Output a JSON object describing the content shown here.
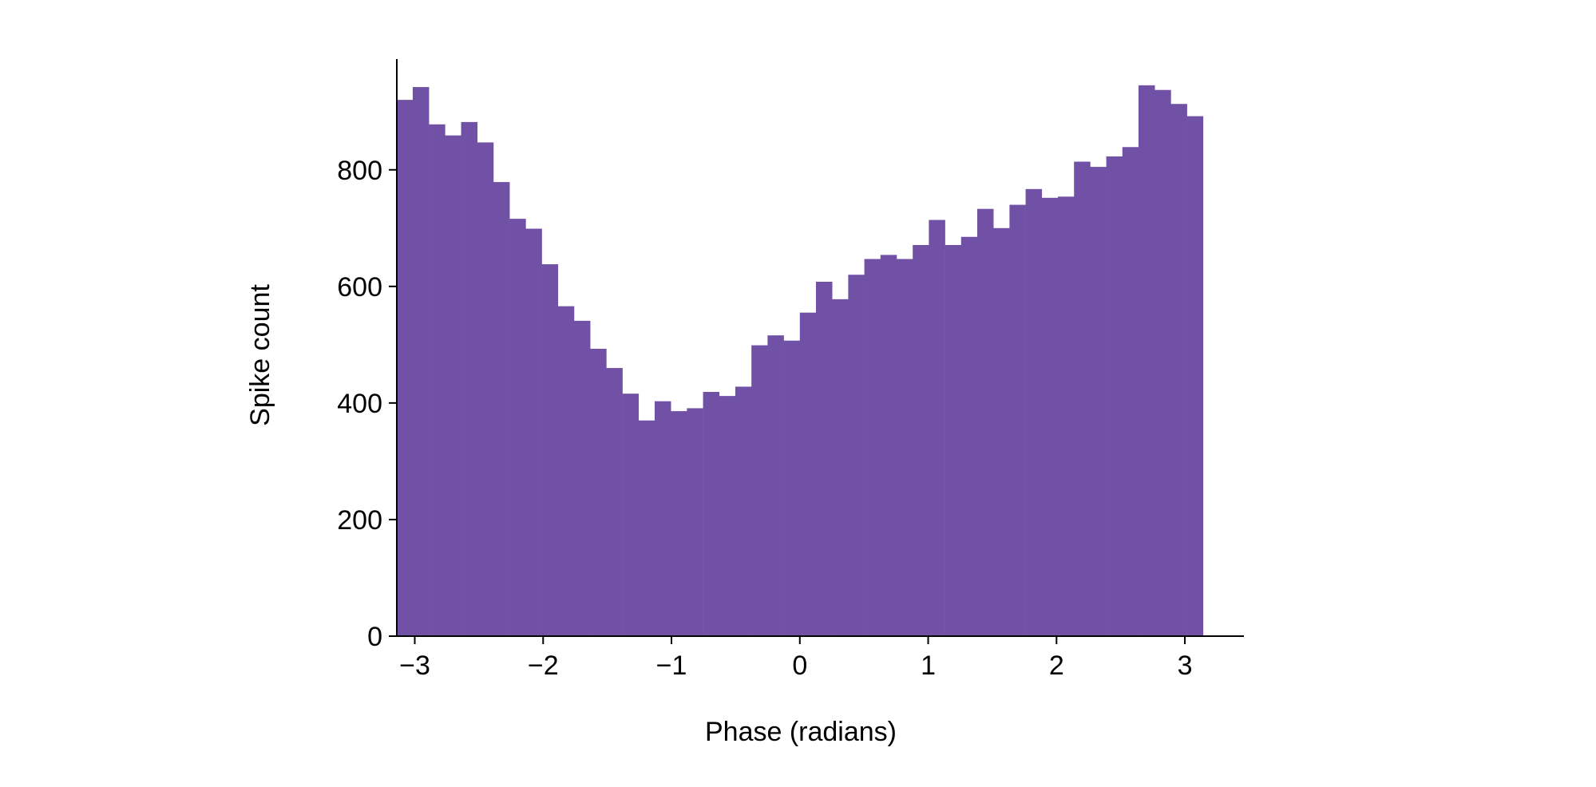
{
  "chart_data": {
    "type": "bar",
    "subtype": "histogram",
    "title": "",
    "xlabel": "Phase (radians)",
    "ylabel": "Spike count",
    "xlim": [
      -3.14,
      3.46
    ],
    "ylim": [
      0,
      990
    ],
    "bin_range": [
      -3.14159,
      3.14159
    ],
    "bins": 50,
    "values": [
      920,
      942,
      878,
      859,
      882,
      847,
      779,
      716,
      699,
      638,
      566,
      541,
      493,
      460,
      416,
      370,
      403,
      386,
      391,
      419,
      412,
      428,
      499,
      516,
      507,
      555,
      608,
      578,
      620,
      647,
      654,
      647,
      671,
      714,
      671,
      685,
      733,
      700,
      740,
      767,
      752,
      754,
      814,
      805,
      823,
      839,
      945,
      937,
      913,
      892
    ],
    "xticks": [
      -3,
      -2,
      -1,
      0,
      1,
      2,
      3
    ],
    "xtick_labels": [
      "−3",
      "−2",
      "−1",
      "0",
      "1",
      "2",
      "3"
    ],
    "yticks": [
      0,
      200,
      400,
      600,
      800
    ],
    "ytick_labels": [
      "0",
      "200",
      "400",
      "600",
      "800"
    ],
    "grid": false,
    "color": "#7151a5"
  }
}
